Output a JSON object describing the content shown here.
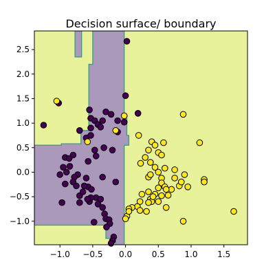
{
  "chart_data": {
    "type": "scatter",
    "title": "Decision surface/ boundary",
    "xlabel": "",
    "ylabel": "",
    "xlim": [
      -1.39,
      1.86
    ],
    "ylim": [
      -1.48,
      2.88
    ],
    "xticks": [
      -1.0,
      -0.5,
      0.0,
      0.5,
      1.0,
      1.5
    ],
    "xtick_labels": [
      "−1.0",
      "−0.5",
      "0.0",
      "0.5",
      "1.0",
      "1.5"
    ],
    "yticks": [
      -1.0,
      -0.5,
      0.0,
      0.5,
      1.0,
      1.5,
      2.0,
      2.5
    ],
    "ytick_labels": [
      "−1.0",
      "−0.5",
      "0.0",
      "0.5",
      "1.0",
      "1.5",
      "2.0",
      "2.5"
    ],
    "grid": false,
    "legend": "none",
    "colors": {
      "class_0_point": "#440154",
      "class_1_point": "#fde725",
      "class_0_region": "#ab99bb",
      "class_1_region": "#e8f29b",
      "boundary": "#3a9b88"
    },
    "decision_regions": {
      "class_0": [
        [
          [
            -0.5,
            2.88
          ],
          [
            -0.02,
            2.88
          ],
          [
            -0.02,
            1.15
          ],
          [
            0.02,
            1.15
          ],
          [
            0.02,
            0.75
          ],
          [
            0.05,
            0.75
          ],
          [
            0.05,
            0.55
          ],
          [
            -0.02,
            0.55
          ],
          [
            -0.02,
            -1.48
          ],
          [
            -0.15,
            -1.48
          ],
          [
            -0.15,
            -1.35
          ],
          [
            -0.3,
            -1.35
          ],
          [
            -0.3,
            -1.08
          ],
          [
            -1.39,
            -1.08
          ],
          [
            -1.39,
            0.55
          ],
          [
            -0.98,
            0.55
          ],
          [
            -0.98,
            0.58
          ],
          [
            -0.68,
            0.58
          ],
          [
            -0.68,
            0.85
          ],
          [
            -0.56,
            0.85
          ],
          [
            -0.56,
            2.2
          ],
          [
            -0.5,
            2.2
          ]
        ],
        [
          [
            -0.77,
            2.88
          ],
          [
            -0.67,
            2.88
          ],
          [
            -0.67,
            2.35
          ],
          [
            -0.77,
            2.35
          ]
        ]
      ]
    },
    "series": [
      {
        "class": 0,
        "points": [
          [
            0.02,
            2.67
          ],
          [
            0.0,
            1.56
          ],
          [
            0.19,
            1.2
          ],
          [
            -0.02,
            1.02
          ],
          [
            -0.12,
            1.05
          ],
          [
            -1.02,
            1.41
          ],
          [
            -1.25,
            0.96
          ],
          [
            -0.55,
            1.27
          ],
          [
            -0.53,
            1.1
          ],
          [
            -0.47,
            1.05
          ],
          [
            -0.35,
            1.05
          ],
          [
            -0.42,
            0.97
          ],
          [
            -0.3,
            1.23
          ],
          [
            -0.22,
            1.18
          ],
          [
            -0.38,
            0.92
          ],
          [
            -0.53,
            0.9
          ],
          [
            -0.7,
            0.85
          ],
          [
            -0.6,
            0.7
          ],
          [
            -0.53,
            0.75
          ],
          [
            -0.12,
            0.82
          ],
          [
            -0.47,
            0.45
          ],
          [
            -0.33,
            0.5
          ],
          [
            -0.2,
            0.45
          ],
          [
            -0.45,
            0.33
          ],
          [
            -0.57,
            0.22
          ],
          [
            -0.8,
            0.35
          ],
          [
            -0.92,
            0.3
          ],
          [
            -0.86,
            0.28
          ],
          [
            -0.85,
            0.12
          ],
          [
            -0.95,
            0.1
          ],
          [
            -0.9,
            0.0
          ],
          [
            -1.0,
            -0.05
          ],
          [
            -0.73,
            -0.05
          ],
          [
            -0.78,
            -0.1
          ],
          [
            -0.8,
            -0.2
          ],
          [
            -0.75,
            -0.28
          ],
          [
            -0.92,
            -0.24
          ],
          [
            -0.6,
            -0.12
          ],
          [
            -0.57,
            -0.3
          ],
          [
            -0.52,
            -0.35
          ],
          [
            -0.35,
            -0.1
          ],
          [
            -0.63,
            -0.28
          ],
          [
            -0.97,
            -0.62
          ],
          [
            -0.7,
            -0.62
          ],
          [
            -0.55,
            -0.6
          ],
          [
            -0.45,
            -0.52
          ],
          [
            -0.42,
            -0.65
          ],
          [
            -0.35,
            -0.72
          ],
          [
            -0.32,
            -0.85
          ],
          [
            -0.3,
            -0.95
          ],
          [
            -0.25,
            -0.97
          ],
          [
            -0.24,
            -1.05
          ],
          [
            -0.29,
            -1.12
          ],
          [
            -0.18,
            -1.32
          ],
          [
            -0.2,
            -1.4
          ],
          [
            -0.22,
            -1.45
          ],
          [
            -0.48,
            -1.02
          ],
          [
            -0.53,
            -0.52
          ],
          [
            -0.7,
            -0.48
          ],
          [
            -0.15,
            -0.2
          ],
          [
            -0.58,
            -0.55
          ],
          [
            -0.38,
            -0.55
          ],
          [
            -0.65,
            -0.4
          ]
        ]
      },
      {
        "class": 1,
        "points": [
          [
            -1.05,
            1.45
          ],
          [
            -0.02,
            1.15
          ],
          [
            0.2,
            0.75
          ],
          [
            -0.58,
            0.62
          ],
          [
            -0.15,
            0.85
          ],
          [
            0.88,
            1.18
          ],
          [
            1.13,
            0.6
          ],
          [
            0.4,
            0.62
          ],
          [
            0.58,
            0.6
          ],
          [
            0.45,
            0.55
          ],
          [
            0.35,
            0.45
          ],
          [
            0.5,
            0.4
          ],
          [
            0.3,
            0.3
          ],
          [
            0.55,
            0.35
          ],
          [
            0.23,
            0.18
          ],
          [
            0.38,
            0.2
          ],
          [
            0.6,
            0.08
          ],
          [
            0.75,
            0.05
          ],
          [
            0.45,
            0.1
          ],
          [
            0.5,
            0.0
          ],
          [
            0.35,
            -0.1
          ],
          [
            0.38,
            -0.05
          ],
          [
            0.55,
            -0.12
          ],
          [
            0.55,
            -0.22
          ],
          [
            0.6,
            -0.3
          ],
          [
            0.5,
            -0.32
          ],
          [
            0.35,
            -0.4
          ],
          [
            0.25,
            -0.45
          ],
          [
            0.45,
            -0.45
          ],
          [
            0.7,
            -0.35
          ],
          [
            0.65,
            -0.47
          ],
          [
            0.55,
            -0.48
          ],
          [
            0.38,
            -0.55
          ],
          [
            0.4,
            -0.6
          ],
          [
            0.22,
            -0.6
          ],
          [
            0.35,
            -0.62
          ],
          [
            0.18,
            -0.7
          ],
          [
            0.1,
            -0.72
          ],
          [
            0.05,
            -0.75
          ],
          [
            0.5,
            -0.6
          ],
          [
            0.62,
            -0.72
          ],
          [
            0.32,
            -0.8
          ],
          [
            0.22,
            -0.78
          ],
          [
            0.9,
            -0.05
          ],
          [
            0.82,
            -0.28
          ],
          [
            0.85,
            -0.2
          ],
          [
            0.95,
            -0.3
          ],
          [
            1.2,
            -0.15
          ],
          [
            1.2,
            -0.2
          ],
          [
            1.65,
            -0.8
          ],
          [
            0.88,
            -1.0
          ],
          [
            0.02,
            -0.9
          ],
          [
            0.0,
            -0.95
          ],
          [
            0.05,
            -0.8
          ],
          [
            0.75,
            -0.12
          ],
          [
            0.62,
            -0.35
          ],
          [
            0.42,
            -0.5
          ]
        ]
      }
    ]
  }
}
